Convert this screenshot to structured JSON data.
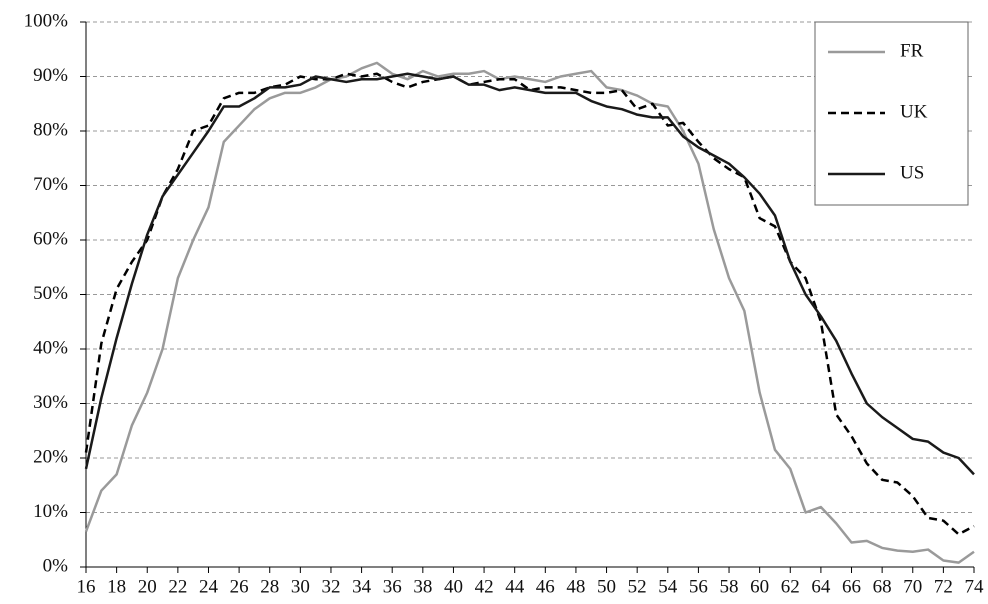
{
  "chart_data": {
    "type": "line",
    "x": [
      16,
      17,
      18,
      19,
      20,
      21,
      22,
      23,
      24,
      25,
      26,
      27,
      28,
      29,
      30,
      31,
      32,
      33,
      34,
      35,
      36,
      37,
      38,
      39,
      40,
      41,
      42,
      43,
      44,
      45,
      46,
      47,
      48,
      49,
      50,
      51,
      52,
      53,
      54,
      55,
      56,
      57,
      58,
      59,
      60,
      61,
      62,
      63,
      64,
      65,
      66,
      67,
      68,
      69,
      70,
      71,
      72,
      73,
      74
    ],
    "series": [
      {
        "name": "FR",
        "color": "#9a9a9a",
        "dash": false,
        "values": [
          6.5,
          14,
          17,
          26,
          32,
          40,
          53,
          60,
          66,
          78,
          81,
          84,
          86,
          87,
          87,
          88,
          89.5,
          90,
          91.5,
          92.5,
          90.5,
          89.5,
          91,
          90,
          90.5,
          90.5,
          91,
          89.5,
          90,
          89.5,
          89,
          90,
          90.5,
          91,
          88,
          87.5,
          86.5,
          85,
          84.5,
          80,
          74,
          62,
          53,
          47,
          32,
          21.5,
          18,
          10,
          11,
          8,
          4.5,
          4.8,
          3.5,
          3,
          2.8,
          3.2,
          1.2,
          0.8,
          2.8
        ]
      },
      {
        "name": "UK",
        "color": "#000000",
        "dash": true,
        "values": [
          21,
          41,
          51,
          56,
          60,
          68,
          73,
          80,
          81,
          86,
          87,
          87,
          88,
          88.5,
          90,
          89.5,
          89.5,
          90.5,
          90,
          90.5,
          89,
          88,
          89,
          89.5,
          90,
          88.5,
          89,
          89.5,
          89.5,
          87.5,
          88,
          88,
          87.5,
          87,
          87,
          87.5,
          84,
          85,
          81,
          81.5,
          78,
          75,
          73,
          71.5,
          64,
          62.5,
          56,
          53,
          45,
          28,
          24,
          19,
          16,
          15.5,
          13,
          9,
          8.5,
          6,
          7.5
        ]
      },
      {
        "name": "US",
        "color": "#1a1a1a",
        "dash": false,
        "values": [
          18,
          31,
          42,
          52,
          61,
          68,
          72,
          76,
          80,
          84.5,
          84.5,
          86,
          88,
          88,
          88.5,
          90,
          89.5,
          89,
          89.5,
          89.5,
          90,
          90.5,
          90,
          89.5,
          90,
          88.5,
          88.5,
          87.5,
          88,
          87.5,
          87,
          87,
          87,
          85.5,
          84.5,
          84,
          83,
          82.5,
          82.5,
          79,
          77,
          75.5,
          74,
          71.5,
          68.5,
          64.5,
          56,
          50,
          46,
          41.5,
          35.5,
          30,
          27.5,
          25.5,
          23.5,
          23,
          21,
          20,
          17
        ]
      }
    ],
    "xlim": [
      16,
      74
    ],
    "xticks": [
      16,
      18,
      20,
      22,
      24,
      26,
      28,
      30,
      32,
      34,
      36,
      38,
      40,
      42,
      44,
      46,
      48,
      50,
      52,
      54,
      56,
      58,
      60,
      62,
      64,
      66,
      68,
      70,
      72,
      74
    ],
    "ylim": [
      0,
      100
    ],
    "yticks": [
      {
        "value": 0,
        "label": "0%"
      },
      {
        "value": 10,
        "label": "10%"
      },
      {
        "value": 20,
        "label": "20%"
      },
      {
        "value": 30,
        "label": "30%"
      },
      {
        "value": 40,
        "label": "40%"
      },
      {
        "value": 50,
        "label": "50%"
      },
      {
        "value": 60,
        "label": "60%"
      },
      {
        "value": 70,
        "label": "70%"
      },
      {
        "value": 80,
        "label": "80%"
      },
      {
        "value": 90,
        "label": "90%"
      },
      {
        "value": 100,
        "label": "100%"
      }
    ],
    "grid": true,
    "legend": "top-right"
  }
}
